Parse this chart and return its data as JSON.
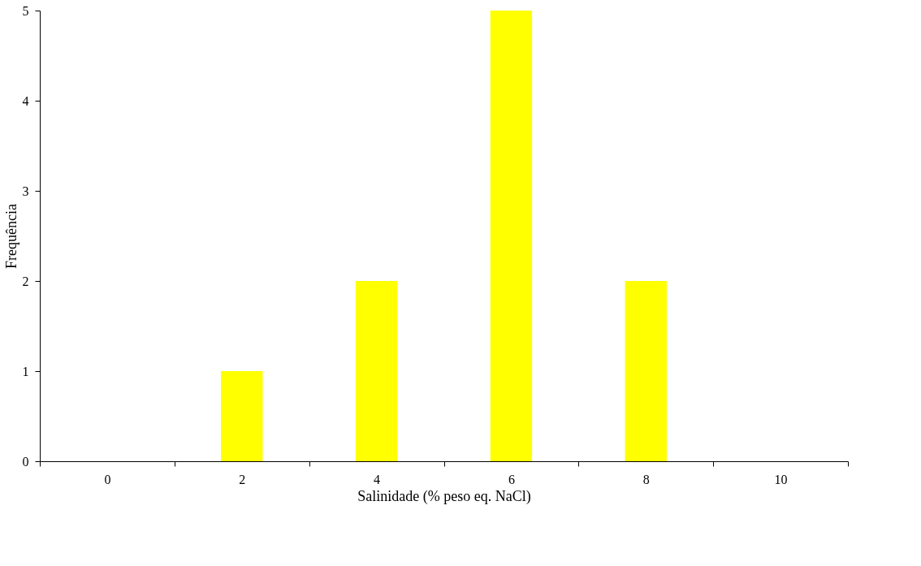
{
  "chart_data": {
    "type": "bar",
    "xlabel": "Salinidade (% peso eq. NaCl)",
    "ylabel": "Frequência",
    "categories": [
      "0",
      "2",
      "4",
      "6",
      "8",
      "10"
    ],
    "values": [
      0,
      1,
      2,
      5,
      2,
      0
    ],
    "color": "#ffff00",
    "ylim": [
      0,
      5
    ],
    "yticks": [
      0,
      1,
      2,
      3,
      4,
      5
    ],
    "grid": false
  }
}
